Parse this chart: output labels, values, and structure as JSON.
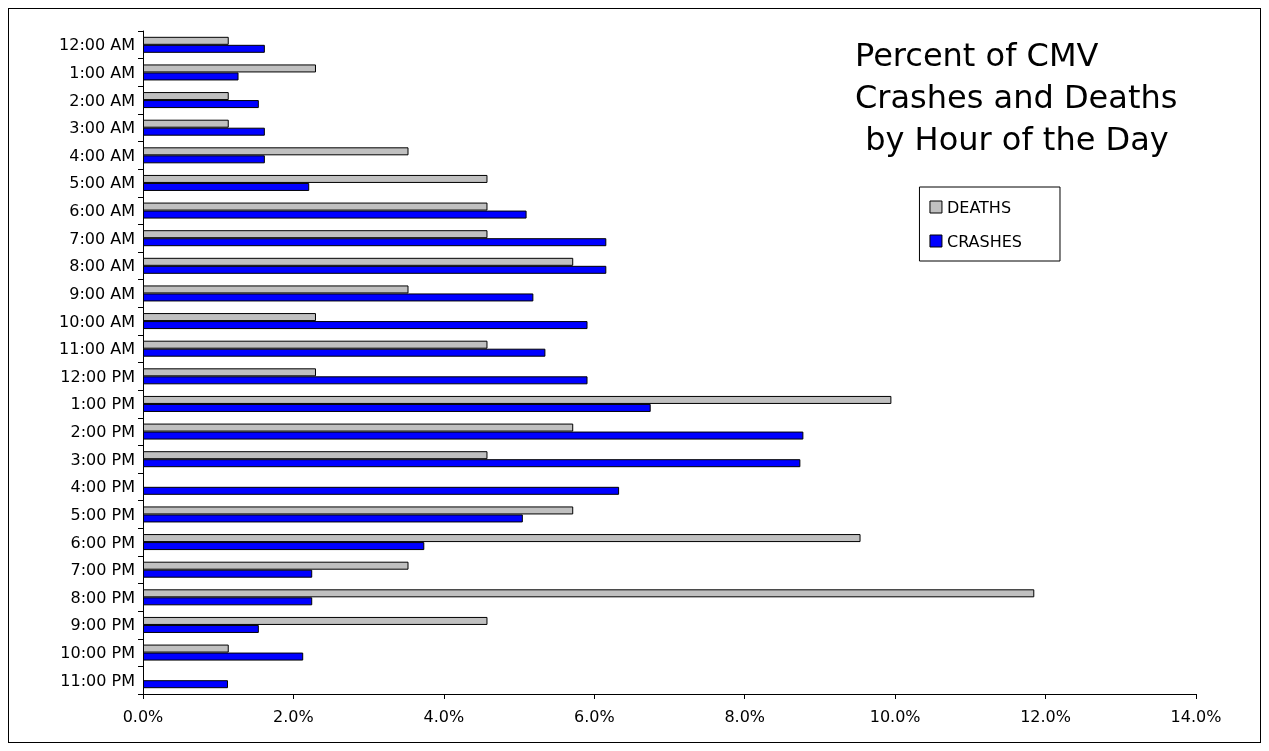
{
  "chart_data": {
    "type": "bar",
    "orientation": "horizontal",
    "title": "Percent of CMV Crashes and Deaths by Hour of the Day",
    "categories": [
      "12:00 AM",
      "1:00 AM",
      "2:00 AM",
      "3:00 AM",
      "4:00 AM",
      "5:00 AM",
      "6:00 AM",
      "7:00 AM",
      "8:00 AM",
      "9:00 AM",
      "10:00 AM",
      "11:00 AM",
      "12:00 PM",
      "1:00 PM",
      "2:00 PM",
      "3:00 PM",
      "4:00 PM",
      "5:00 PM",
      "6:00 PM",
      "7:00 PM",
      "8:00 PM",
      "9:00 PM",
      "10:00 PM",
      "11:00 PM"
    ],
    "series": [
      {
        "name": "DEATHS",
        "color": "#c0c0c0",
        "values": [
          1.14,
          2.3,
          1.14,
          1.14,
          3.53,
          4.58,
          4.58,
          4.58,
          5.72,
          3.53,
          2.3,
          4.58,
          2.3,
          9.95,
          5.72,
          4.58,
          0,
          5.72,
          9.54,
          3.53,
          11.85,
          4.58,
          1.14,
          0
        ]
      },
      {
        "name": "CRASHES",
        "color": "#0000ff",
        "values": [
          1.62,
          1.27,
          1.54,
          1.62,
          1.62,
          2.21,
          5.1,
          6.16,
          6.16,
          5.19,
          5.91,
          5.35,
          5.91,
          6.75,
          8.78,
          8.74,
          6.33,
          5.05,
          3.74,
          2.25,
          2.25,
          1.54,
          2.13,
          1.13
        ]
      }
    ],
    "xlim": [
      0,
      14
    ],
    "xticks": [
      {
        "value": 0,
        "label": "0.0%"
      },
      {
        "value": 2,
        "label": "2.0%"
      },
      {
        "value": 4,
        "label": "4.0%"
      },
      {
        "value": 6,
        "label": "6.0%"
      },
      {
        "value": 8,
        "label": "8.0%"
      },
      {
        "value": 10,
        "label": "10.0%"
      },
      {
        "value": 12,
        "label": "12.0%"
      },
      {
        "value": 14,
        "label": "14.0%"
      }
    ],
    "grid": false,
    "legend": "top right"
  }
}
